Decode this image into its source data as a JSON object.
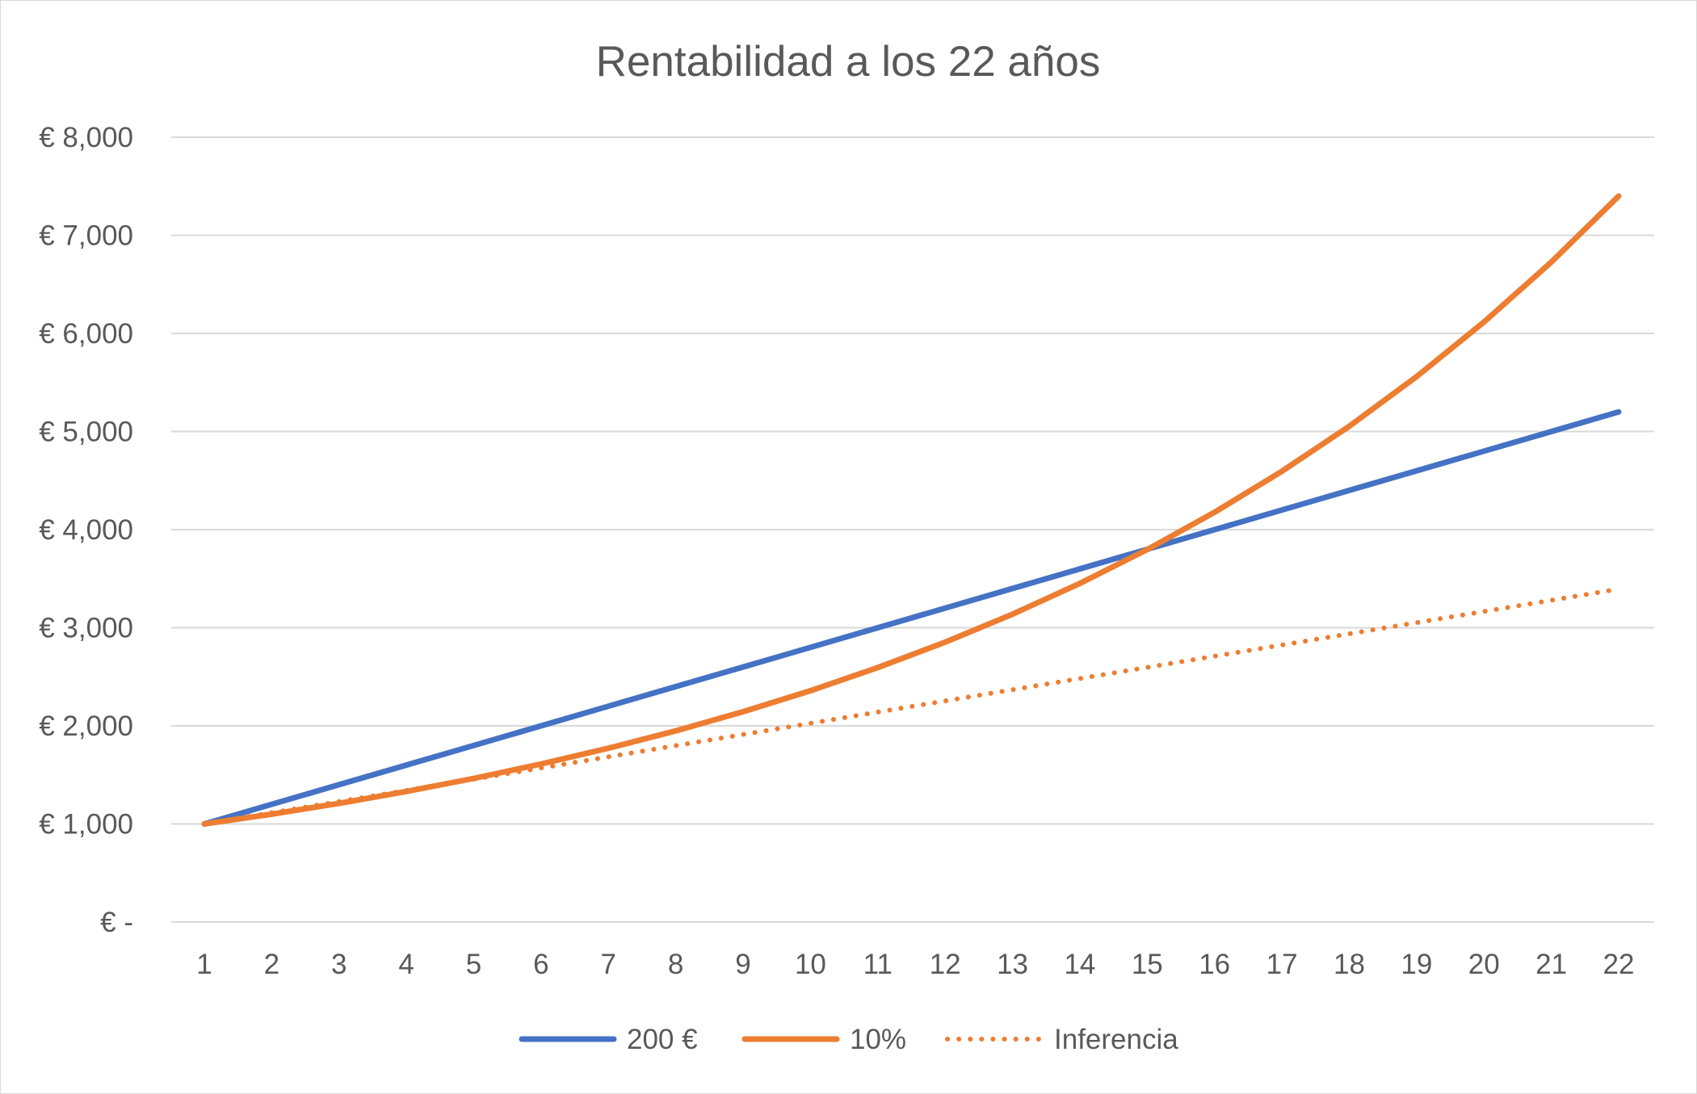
{
  "chart_data": {
    "type": "line",
    "title": "Rentabilidad a los 22 años",
    "xlabel": "",
    "ylabel": "",
    "x": [
      "1",
      "2",
      "3",
      "4",
      "5",
      "6",
      "7",
      "8",
      "9",
      "10",
      "11",
      "12",
      "13",
      "14",
      "15",
      "16",
      "17",
      "18",
      "19",
      "20",
      "21",
      "22"
    ],
    "ylim": [
      0,
      8000
    ],
    "y_ticks": [
      0,
      1000,
      2000,
      3000,
      4000,
      5000,
      6000,
      7000,
      8000
    ],
    "y_tick_labels": [
      "€ -",
      "€ 1,000",
      "€ 2,000",
      "€ 3,000",
      "€ 4,000",
      "€ 5,000",
      "€ 6,000",
      "€ 7,000",
      "€ 8,000"
    ],
    "grid": true,
    "legend_position": "bottom",
    "series": [
      {
        "name": "200 €",
        "color": "#4472c4",
        "style": "solid",
        "values": [
          1000,
          1200,
          1400,
          1600,
          1800,
          2000,
          2200,
          2400,
          2600,
          2800,
          3000,
          3200,
          3400,
          3600,
          3800,
          4000,
          4200,
          4400,
          4600,
          4800,
          5000,
          5200
        ]
      },
      {
        "name": "10%",
        "color": "#ed7d31",
        "style": "solid",
        "values": [
          1000,
          1100,
          1210,
          1331,
          1464,
          1611,
          1772,
          1949,
          2144,
          2358,
          2594,
          2853,
          3138,
          3452,
          3797,
          4177,
          4595,
          5054,
          5560,
          6116,
          6727,
          7400
        ]
      },
      {
        "name": "Inferencia",
        "color": "#ed7d31",
        "style": "dotted",
        "values": [
          1000,
          1114,
          1228,
          1342,
          1456,
          1570,
          1684,
          1798,
          1912,
          2026,
          2140,
          2254,
          2368,
          2482,
          2596,
          2710,
          2824,
          2938,
          3052,
          3166,
          3280,
          3394
        ]
      }
    ]
  }
}
